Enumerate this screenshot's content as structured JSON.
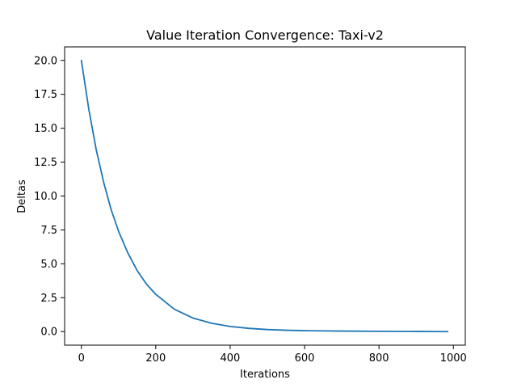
{
  "chart_data": {
    "type": "line",
    "title": "Value Iteration Convergence: Taxi-v2",
    "xlabel": "Iterations",
    "ylabel": "Deltas",
    "xlim": [
      -45,
      1032
    ],
    "ylim": [
      -1.0,
      21.0
    ],
    "x_ticks": [
      0,
      200,
      400,
      600,
      800,
      1000
    ],
    "y_ticks": [
      0.0,
      2.5,
      5.0,
      7.5,
      10.0,
      12.5,
      15.0,
      17.5,
      20.0
    ],
    "x_tick_labels": [
      "0",
      "200",
      "400",
      "600",
      "800",
      "1000"
    ],
    "y_tick_labels": [
      "0.0",
      "2.5",
      "5.0",
      "7.5",
      "10.0",
      "12.5",
      "15.0",
      "17.5",
      "20.0"
    ],
    "grid": false,
    "series": [
      {
        "color": "#1f77b4",
        "x": [
          0,
          20,
          40,
          60,
          80,
          100,
          125,
          150,
          175,
          200,
          250,
          300,
          350,
          400,
          450,
          500,
          550,
          600,
          650,
          700,
          800,
          900,
          985
        ],
        "y": [
          20.0,
          16.4,
          13.4,
          11.0,
          9.0,
          7.4,
          5.8,
          4.5,
          3.5,
          2.75,
          1.65,
          1.0,
          0.62,
          0.38,
          0.24,
          0.15,
          0.1,
          0.07,
          0.05,
          0.04,
          0.02,
          0.01,
          0.0
        ]
      }
    ]
  }
}
